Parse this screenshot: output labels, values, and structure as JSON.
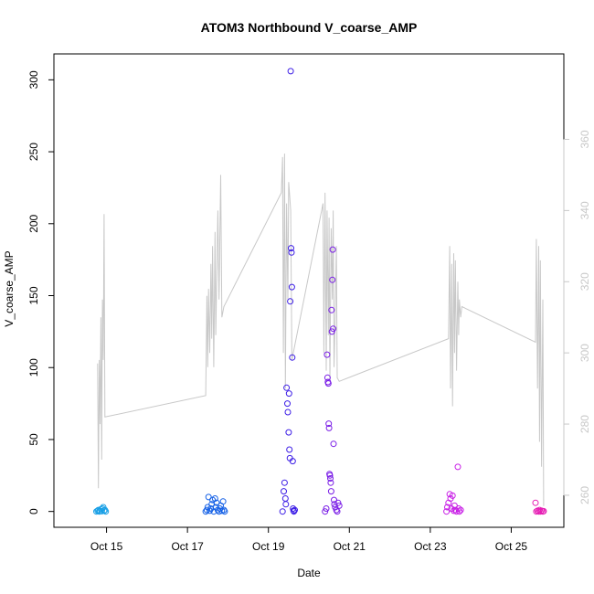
{
  "chart_data": {
    "type": "scatter",
    "title": "ATOM3 Northbound V_coarse_AMP",
    "xlabel": "Date",
    "ylabel": "V_coarse_AMP",
    "ylabel_right": "",
    "x_tick_labels": [
      "Oct 15",
      "Oct 17",
      "Oct 19",
      "Oct 21",
      "Oct 23",
      "Oct 25"
    ],
    "x_ticks_day": [
      15,
      17,
      19,
      21,
      23,
      25
    ],
    "xlim_day": [
      13.7,
      26.3
    ],
    "ylim": [
      -11,
      318
    ],
    "y_ticks": [
      0,
      50,
      100,
      150,
      200,
      250,
      300
    ],
    "y_tick_labels": [
      "0",
      "50",
      "100",
      "150",
      "200",
      "250",
      "300"
    ],
    "y2lim": [
      251,
      384
    ],
    "y2_ticks": [
      260,
      280,
      300,
      320,
      340,
      360
    ],
    "y2_tick_labels": [
      "260",
      "280",
      "300",
      "320",
      "340",
      "360"
    ],
    "grid": false,
    "legend": "none",
    "colors": {
      "line": "#c8c8c8",
      "right_axis": "#c8c8c8",
      "axis": "#000000"
    },
    "series": [
      {
        "kind": "points",
        "color": "#1aa0e6",
        "points": [
          [
            14.75,
            0
          ],
          [
            14.78,
            0.5
          ],
          [
            14.8,
            1
          ],
          [
            14.82,
            0
          ],
          [
            14.84,
            0.3
          ],
          [
            14.86,
            1.5
          ],
          [
            14.88,
            0.2
          ],
          [
            14.9,
            2
          ],
          [
            14.92,
            3
          ],
          [
            14.94,
            0.5
          ],
          [
            14.96,
            1
          ],
          [
            14.98,
            0
          ]
        ]
      },
      {
        "kind": "points",
        "color": "#1460e6",
        "points": [
          [
            17.45,
            0
          ],
          [
            17.48,
            1
          ],
          [
            17.5,
            3
          ],
          [
            17.52,
            10
          ],
          [
            17.55,
            0.5
          ],
          [
            17.58,
            2
          ],
          [
            17.6,
            5
          ],
          [
            17.62,
            8
          ],
          [
            17.65,
            0
          ],
          [
            17.68,
            9
          ],
          [
            17.7,
            3
          ],
          [
            17.72,
            6
          ],
          [
            17.75,
            1
          ],
          [
            17.78,
            0
          ],
          [
            17.8,
            2
          ],
          [
            17.82,
            4
          ],
          [
            17.85,
            0.5
          ],
          [
            17.88,
            7
          ],
          [
            17.9,
            1
          ],
          [
            17.92,
            0
          ]
        ]
      },
      {
        "kind": "points",
        "color": "#3d1ee6",
        "points": [
          [
            19.35,
            0
          ],
          [
            19.38,
            14
          ],
          [
            19.4,
            20
          ],
          [
            19.42,
            9
          ],
          [
            19.43,
            5
          ],
          [
            19.45,
            86
          ],
          [
            19.47,
            75
          ],
          [
            19.48,
            69
          ],
          [
            19.5,
            55
          ],
          [
            19.51,
            82
          ],
          [
            19.52,
            43
          ],
          [
            19.53,
            37
          ],
          [
            19.54,
            146
          ],
          [
            19.55,
            306
          ],
          [
            19.56,
            183
          ],
          [
            19.57,
            180
          ],
          [
            19.58,
            156
          ],
          [
            19.59,
            107
          ],
          [
            19.6,
            35
          ],
          [
            19.61,
            2
          ],
          [
            19.62,
            0.5
          ],
          [
            19.63,
            0
          ],
          [
            19.65,
            1
          ]
        ]
      },
      {
        "kind": "points",
        "color": "#7a1ee6",
        "points": [
          [
            20.4,
            0
          ],
          [
            20.43,
            2
          ],
          [
            20.45,
            109
          ],
          [
            20.46,
            93
          ],
          [
            20.47,
            90
          ],
          [
            20.48,
            89
          ],
          [
            20.49,
            61
          ],
          [
            20.5,
            58
          ],
          [
            20.51,
            26
          ],
          [
            20.52,
            25
          ],
          [
            20.53,
            23
          ],
          [
            20.54,
            20
          ],
          [
            20.55,
            14
          ],
          [
            20.56,
            140
          ],
          [
            20.57,
            125
          ],
          [
            20.58,
            161
          ],
          [
            20.59,
            182
          ],
          [
            20.6,
            127
          ],
          [
            20.61,
            47
          ],
          [
            20.62,
            8
          ],
          [
            20.63,
            5
          ],
          [
            20.65,
            3
          ],
          [
            20.68,
            1
          ],
          [
            20.7,
            0
          ],
          [
            20.72,
            6
          ],
          [
            20.75,
            4
          ]
        ]
      },
      {
        "kind": "points",
        "color": "#c81ee6",
        "points": [
          [
            23.4,
            0
          ],
          [
            23.42,
            3
          ],
          [
            23.45,
            6
          ],
          [
            23.48,
            12
          ],
          [
            23.5,
            9
          ],
          [
            23.52,
            2
          ],
          [
            23.55,
            11
          ],
          [
            23.58,
            0.5
          ],
          [
            23.6,
            4
          ],
          [
            23.62,
            1
          ],
          [
            23.65,
            0
          ],
          [
            23.68,
            31
          ],
          [
            23.7,
            2
          ],
          [
            23.72,
            0
          ],
          [
            23.75,
            1
          ]
        ]
      },
      {
        "kind": "points",
        "color": "#e61eb4",
        "points": [
          [
            25.6,
            6
          ],
          [
            25.62,
            0
          ],
          [
            25.65,
            0.5
          ],
          [
            25.68,
            0
          ],
          [
            25.7,
            1
          ],
          [
            25.72,
            0
          ],
          [
            25.75,
            0.5
          ],
          [
            25.78,
            0
          ],
          [
            25.8,
            0.2
          ]
        ]
      },
      {
        "kind": "line",
        "axis": "right",
        "color": "#c8c8c8",
        "points": [
          [
            14.78,
            297
          ],
          [
            14.8,
            262
          ],
          [
            14.82,
            298
          ],
          [
            14.84,
            280
          ],
          [
            14.86,
            310
          ],
          [
            14.88,
            270
          ],
          [
            14.9,
            315
          ],
          [
            14.92,
            298
          ],
          [
            14.94,
            339
          ],
          [
            14.96,
            282
          ],
          [
            17.45,
            288
          ],
          [
            17.48,
            316
          ],
          [
            17.5,
            296
          ],
          [
            17.52,
            318
          ],
          [
            17.55,
            300
          ],
          [
            17.58,
            325
          ],
          [
            17.6,
            304
          ],
          [
            17.62,
            330
          ],
          [
            17.65,
            296
          ],
          [
            17.68,
            334
          ],
          [
            17.7,
            305
          ],
          [
            17.75,
            340
          ],
          [
            17.78,
            315
          ],
          [
            17.82,
            350
          ],
          [
            17.85,
            310
          ],
          [
            17.9,
            313
          ],
          [
            19.32,
            345
          ],
          [
            19.35,
            355
          ],
          [
            19.37,
            300
          ],
          [
            19.4,
            356
          ],
          [
            19.42,
            290
          ],
          [
            19.45,
            342
          ],
          [
            19.48,
            315
          ],
          [
            19.5,
            348
          ],
          [
            19.55,
            340
          ],
          [
            19.58,
            298
          ],
          [
            20.35,
            342
          ],
          [
            20.37,
            300
          ],
          [
            20.4,
            345
          ],
          [
            20.43,
            295
          ],
          [
            20.45,
            340
          ],
          [
            20.48,
            305
          ],
          [
            20.5,
            338
          ],
          [
            20.52,
            292
          ],
          [
            20.55,
            335
          ],
          [
            20.58,
            315
          ],
          [
            20.6,
            340
          ],
          [
            20.62,
            296
          ],
          [
            20.65,
            310
          ],
          [
            20.68,
            330
          ],
          [
            20.7,
            293
          ],
          [
            20.75,
            292
          ],
          [
            23.45,
            304
          ],
          [
            23.48,
            330
          ],
          [
            23.5,
            290
          ],
          [
            23.53,
            325
          ],
          [
            23.55,
            285
          ],
          [
            23.58,
            328
          ],
          [
            23.6,
            300
          ],
          [
            23.62,
            326
          ],
          [
            23.65,
            295
          ],
          [
            23.68,
            320
          ],
          [
            23.7,
            305
          ],
          [
            23.72,
            315
          ],
          [
            23.75,
            310
          ],
          [
            23.78,
            313
          ],
          [
            25.6,
            303
          ],
          [
            25.62,
            332
          ],
          [
            25.65,
            290
          ],
          [
            25.68,
            330
          ],
          [
            25.7,
            275
          ],
          [
            25.72,
            326
          ],
          [
            25.75,
            268
          ],
          [
            25.78,
            315
          ],
          [
            25.8,
            257
          ]
        ]
      }
    ]
  }
}
